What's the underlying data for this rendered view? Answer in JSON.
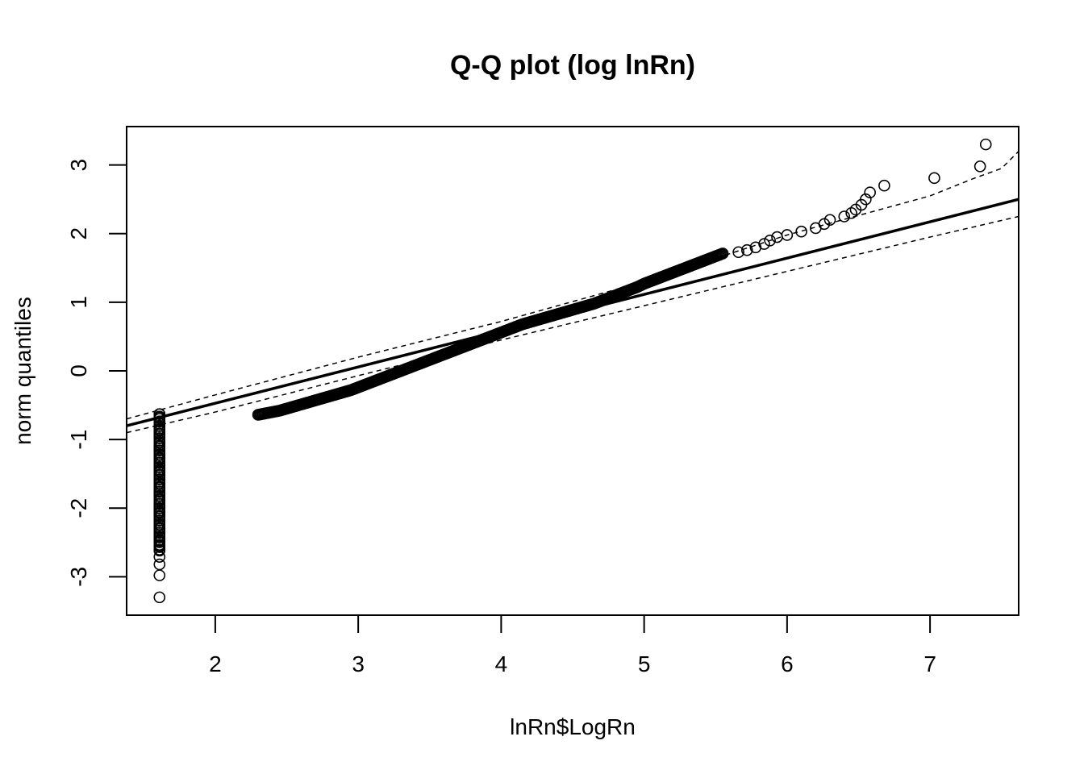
{
  "chart_data": {
    "type": "scatter",
    "title": "Q-Q plot (log lnRn)",
    "xlabel": "lnRn$LogRn",
    "ylabel": "norm quantiles",
    "xlim": [
      1.38,
      7.62
    ],
    "ylim": [
      -3.56,
      3.56
    ],
    "x_ticks": [
      2,
      3,
      4,
      5,
      6,
      7
    ],
    "y_ticks": [
      -3,
      -2,
      -1,
      0,
      1,
      2,
      3
    ],
    "x_tick_labels": [
      "2",
      "3",
      "4",
      "5",
      "6",
      "7"
    ],
    "y_tick_labels": [
      "-3",
      "-2",
      "-1",
      "0",
      "1",
      "2",
      "3"
    ],
    "grid": false,
    "legend": "none",
    "reference_line": {
      "description": "fitted line",
      "x": [
        1.38,
        7.62
      ],
      "y": [
        -0.8,
        2.5
      ]
    },
    "confidence_band_upper": {
      "x": [
        1.38,
        2.0,
        3.0,
        4.0,
        5.0,
        6.0,
        7.0,
        7.3,
        7.5,
        7.62
      ],
      "y": [
        -0.7,
        -0.35,
        0.2,
        0.72,
        1.3,
        1.98,
        2.55,
        2.8,
        2.95,
        3.2
      ]
    },
    "confidence_band_lower": {
      "x": [
        1.38,
        2.0,
        3.0,
        4.0,
        5.0,
        6.0,
        7.0,
        7.62
      ],
      "y": [
        -0.9,
        -0.6,
        -0.07,
        0.45,
        0.95,
        1.45,
        1.95,
        2.25
      ]
    },
    "series": [
      {
        "points": [
          [
            1.61,
            -3.3
          ],
          [
            1.61,
            -2.98
          ],
          [
            1.61,
            -2.82
          ],
          [
            1.61,
            -2.71
          ],
          [
            1.61,
            -2.62
          ],
          [
            1.61,
            -2.55
          ],
          [
            1.61,
            -2.48
          ],
          [
            1.61,
            -2.42
          ],
          [
            1.61,
            -2.36
          ],
          [
            1.61,
            -2.3
          ],
          [
            1.61,
            -2.24
          ],
          [
            1.61,
            -2.18
          ],
          [
            1.61,
            -2.12
          ],
          [
            1.61,
            -2.06
          ],
          [
            1.61,
            -2.0
          ],
          [
            1.61,
            -1.94
          ],
          [
            1.61,
            -1.88
          ],
          [
            1.61,
            -1.82
          ],
          [
            1.61,
            -1.76
          ],
          [
            1.61,
            -1.7
          ],
          [
            1.61,
            -1.64
          ],
          [
            1.61,
            -1.58
          ],
          [
            1.61,
            -1.52
          ],
          [
            1.61,
            -1.46
          ],
          [
            1.61,
            -1.4
          ],
          [
            1.61,
            -1.34
          ],
          [
            1.61,
            -1.28
          ],
          [
            1.61,
            -1.22
          ],
          [
            1.61,
            -1.16
          ],
          [
            1.61,
            -1.1
          ],
          [
            1.61,
            -1.04
          ],
          [
            1.61,
            -0.98
          ],
          [
            1.61,
            -0.92
          ],
          [
            1.61,
            -0.86
          ],
          [
            1.61,
            -0.8
          ],
          [
            1.61,
            -0.74
          ],
          [
            1.61,
            -0.68
          ],
          [
            1.61,
            -0.63
          ],
          [
            2.3,
            -0.64
          ],
          [
            2.35,
            -0.62
          ],
          [
            2.4,
            -0.6
          ],
          [
            2.45,
            -0.58
          ],
          [
            2.5,
            -0.55
          ],
          [
            2.55,
            -0.52
          ],
          [
            2.6,
            -0.49
          ],
          [
            2.65,
            -0.46
          ],
          [
            2.7,
            -0.43
          ],
          [
            2.75,
            -0.4
          ],
          [
            2.8,
            -0.37
          ],
          [
            2.85,
            -0.34
          ],
          [
            2.9,
            -0.31
          ],
          [
            2.95,
            -0.28
          ],
          [
            3.0,
            -0.24
          ],
          [
            3.05,
            -0.2
          ],
          [
            3.1,
            -0.16
          ],
          [
            3.15,
            -0.12
          ],
          [
            3.2,
            -0.08
          ],
          [
            3.25,
            -0.04
          ],
          [
            3.3,
            0.0
          ],
          [
            3.35,
            0.04
          ],
          [
            3.4,
            0.08
          ],
          [
            3.45,
            0.12
          ],
          [
            3.5,
            0.16
          ],
          [
            3.55,
            0.2
          ],
          [
            3.6,
            0.24
          ],
          [
            3.65,
            0.28
          ],
          [
            3.7,
            0.32
          ],
          [
            3.75,
            0.36
          ],
          [
            3.8,
            0.4
          ],
          [
            3.85,
            0.44
          ],
          [
            3.9,
            0.48
          ],
          [
            3.95,
            0.52
          ],
          [
            4.0,
            0.56
          ],
          [
            4.05,
            0.6
          ],
          [
            4.1,
            0.64
          ],
          [
            4.15,
            0.68
          ],
          [
            4.2,
            0.71
          ],
          [
            4.25,
            0.74
          ],
          [
            4.3,
            0.77
          ],
          [
            4.35,
            0.8
          ],
          [
            4.4,
            0.83
          ],
          [
            4.45,
            0.86
          ],
          [
            4.5,
            0.89
          ],
          [
            4.55,
            0.92
          ],
          [
            4.6,
            0.95
          ],
          [
            4.65,
            0.98
          ],
          [
            4.7,
            1.02
          ],
          [
            4.75,
            1.06
          ],
          [
            4.8,
            1.1
          ],
          [
            4.85,
            1.14
          ],
          [
            4.9,
            1.18
          ],
          [
            4.95,
            1.22
          ],
          [
            5.0,
            1.27
          ],
          [
            5.05,
            1.31
          ],
          [
            5.1,
            1.35
          ],
          [
            5.15,
            1.39
          ],
          [
            5.2,
            1.43
          ],
          [
            5.25,
            1.47
          ],
          [
            5.3,
            1.51
          ],
          [
            5.35,
            1.55
          ],
          [
            5.4,
            1.59
          ],
          [
            5.45,
            1.63
          ],
          [
            5.5,
            1.67
          ],
          [
            5.55,
            1.71
          ],
          [
            5.66,
            1.73
          ],
          [
            5.72,
            1.76
          ],
          [
            5.78,
            1.8
          ],
          [
            5.84,
            1.85
          ],
          [
            5.88,
            1.9
          ],
          [
            5.93,
            1.95
          ],
          [
            6.0,
            1.98
          ],
          [
            6.1,
            2.03
          ],
          [
            6.2,
            2.08
          ],
          [
            6.26,
            2.14
          ],
          [
            6.3,
            2.2
          ],
          [
            6.4,
            2.25
          ],
          [
            6.45,
            2.3
          ],
          [
            6.48,
            2.35
          ],
          [
            6.52,
            2.42
          ],
          [
            6.55,
            2.5
          ],
          [
            6.58,
            2.6
          ],
          [
            6.68,
            2.7
          ],
          [
            7.03,
            2.81
          ],
          [
            7.35,
            2.98
          ],
          [
            7.39,
            3.3
          ]
        ]
      }
    ]
  }
}
